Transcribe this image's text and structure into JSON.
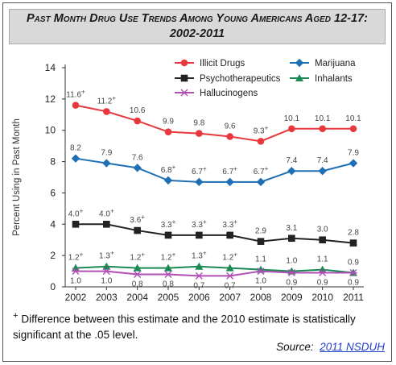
{
  "title": {
    "line1": "Past Month Drug Use Trends Among Young Americans Aged 12-17:",
    "line2": "2002-2011"
  },
  "footnote": {
    "marker": "+",
    "text": " Difference between this estimate and the 2010 estimate is statistically significant at the .05 level."
  },
  "source": {
    "label": "Source:",
    "link_text": "2011 NSDUH"
  },
  "chart_data": {
    "type": "line",
    "ylabel": "Percent Using in Past Month",
    "xlabel": "",
    "ylim": [
      0,
      14
    ],
    "yticks": [
      0,
      2,
      4,
      6,
      8,
      10,
      12,
      14
    ],
    "x": [
      "2002",
      "2003",
      "2004",
      "2005",
      "2006",
      "2007",
      "2008",
      "2009",
      "2010",
      "2011"
    ],
    "legend_placement": "top-right",
    "series": [
      {
        "name": "Illicit Drugs",
        "color": "#e8383d",
        "marker": "circle",
        "values": [
          11.6,
          11.2,
          10.6,
          9.9,
          9.8,
          9.6,
          9.3,
          10.1,
          10.1,
          10.1
        ],
        "labels": [
          "11.6+",
          "11.2+",
          "10.6",
          "9.9",
          "9.8",
          "9.6",
          "9.3+",
          "10.1",
          "10.1",
          "10.1"
        ],
        "label_position": "above"
      },
      {
        "name": "Marijuana",
        "color": "#1f6fb5",
        "marker": "diamond",
        "values": [
          8.2,
          7.9,
          7.6,
          6.8,
          6.7,
          6.7,
          6.7,
          7.4,
          7.4,
          7.9
        ],
        "labels": [
          "8.2",
          "7.9",
          "7.6",
          "6.8+",
          "6.7+",
          "6.7+",
          "6.7+",
          "7.4",
          "7.4",
          "7.9"
        ],
        "label_position": "above"
      },
      {
        "name": "Psychotherapeutics",
        "color": "#222222",
        "marker": "square",
        "values": [
          4.0,
          4.0,
          3.6,
          3.3,
          3.3,
          3.3,
          2.9,
          3.1,
          3.0,
          2.8
        ],
        "labels": [
          "4.0+",
          "4.0+",
          "3.6+",
          "3.3+",
          "3.3+",
          "3.3+",
          "2.9",
          "3.1",
          "3.0",
          "2.8"
        ],
        "label_position": "above"
      },
      {
        "name": "Inhalants",
        "color": "#1a8a55",
        "marker": "triangle",
        "values": [
          1.2,
          1.3,
          1.2,
          1.2,
          1.3,
          1.2,
          1.1,
          1.0,
          1.1,
          0.9
        ],
        "labels": [
          "1.2+",
          "1.3+",
          "1.2+",
          "1.2+",
          "1.3+",
          "1.2+",
          "1.1",
          "1.0",
          "1.1",
          "0.9"
        ],
        "label_position": "above"
      },
      {
        "name": "Hallucinogens",
        "color": "#b14fb5",
        "marker": "star",
        "values": [
          1.0,
          1.0,
          0.8,
          0.8,
          0.7,
          0.7,
          1.0,
          0.9,
          0.9,
          0.9
        ],
        "labels": [
          "1.0",
          "1.0",
          "0.8",
          "0.8",
          "0.7",
          "0.7",
          "1.0",
          "0.9",
          "0.9",
          "0.9"
        ],
        "label_position": "below"
      }
    ],
    "legend_order": [
      "Illicit Drugs",
      "Marijuana",
      "Psychotherapeutics",
      "Inhalants",
      "Hallucinogens"
    ]
  }
}
